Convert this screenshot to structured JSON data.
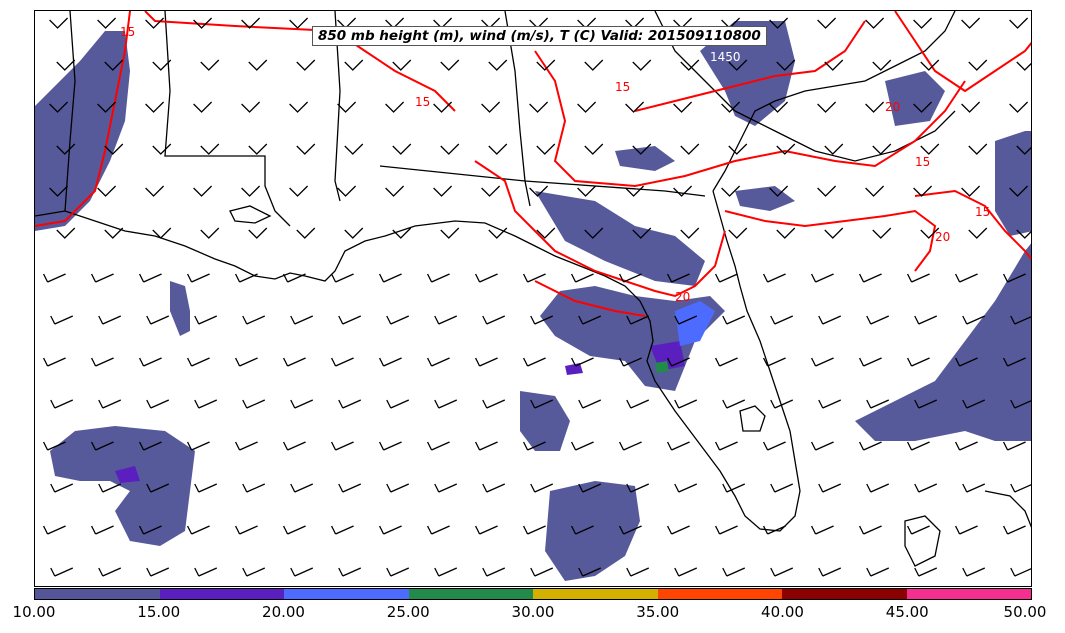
{
  "title": "850 mb height (m), wind (m/s), T (C) Valid: 201509110800",
  "colorbar": {
    "ticks": [
      "10.00",
      "15.00",
      "20.00",
      "25.00",
      "30.00",
      "35.00",
      "40.00",
      "45.00",
      "50.00"
    ],
    "colors": [
      "#555599",
      "#5b1fbf",
      "#4d6cff",
      "#228b4b",
      "#d4b000",
      "#ff4500",
      "#8b0000",
      "#f52f8f"
    ]
  },
  "contour_labels": [
    "15",
    "15",
    "1450",
    "15",
    "15",
    "20",
    "20",
    "20",
    "15"
  ],
  "colors": {
    "wind_speed_fill": "#575a9a",
    "temperature_contour": "#ff0000",
    "coastline": "#000000"
  }
}
